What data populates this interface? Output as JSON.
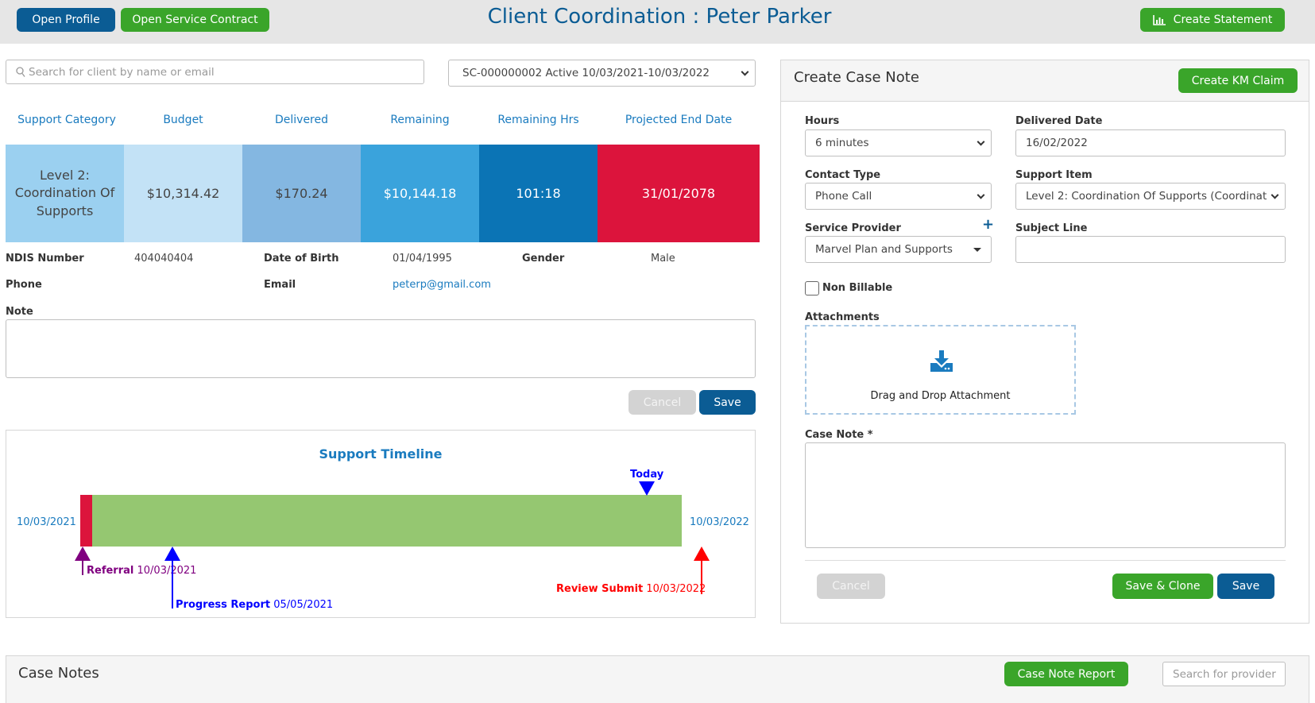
{
  "header": {
    "open_profile": "Open Profile",
    "open_service_contract": "Open Service Contract",
    "title": "Client Coordination : Peter Parker",
    "create_statement": "Create Statement"
  },
  "search": {
    "placeholder": "Search for client by name or email"
  },
  "contract_select": {
    "value": "SC-000000002 Active 10/03/2021-10/03/2022"
  },
  "stats": {
    "headers": [
      "Support Category",
      "Budget",
      "Delivered",
      "Remaining",
      "Remaining Hrs",
      "Projected End Date"
    ],
    "values": [
      "Level 2: Coordination Of Supports",
      "$10,314.42",
      "$170.24",
      "$10,144.18",
      "101:18",
      "31/01/2078"
    ],
    "colors": [
      "#9bd0f0",
      "#c3e2f6",
      "#84b7e1",
      "#3aa3dc",
      "#0b74b5",
      "#dc143c"
    ]
  },
  "client": {
    "ndis_label": "NDIS Number",
    "ndis_value": "404040404",
    "dob_label": "Date of Birth",
    "dob_value": "01/04/1995",
    "gender_label": "Gender",
    "gender_value": "Male",
    "phone_label": "Phone",
    "phone_value": "",
    "email_label": "Email",
    "email_value": "peterp@gmail.com",
    "note_label": "Note",
    "note_value": ""
  },
  "note_actions": {
    "cancel": "Cancel",
    "save": "Save"
  },
  "timeline": {
    "title": "Support Timeline",
    "start_date": "10/03/2021",
    "end_date": "10/03/2022",
    "today_label": "Today",
    "elapsed_fraction": 0.02,
    "today_fraction": 0.942,
    "referral_label": "Referral",
    "referral_date": "10/03/2021",
    "progress_label": "Progress Report",
    "progress_date": "05/05/2021",
    "review_label": "Review Submit",
    "review_date": "10/03/2022",
    "colors": {
      "bar": "#95c771",
      "elapsed": "#dc143c",
      "referral": "#800080",
      "progress": "#0000ff",
      "review": "#ff0000",
      "today": "#0000ff"
    }
  },
  "case_note_form": {
    "title": "Create Case Note",
    "create_km_claim": "Create KM Claim",
    "hours_label": "Hours",
    "hours_value": "6 minutes",
    "delivered_date_label": "Delivered Date",
    "delivered_date_value": "16/02/2022",
    "contact_type_label": "Contact Type",
    "contact_type_value": "Phone Call",
    "support_item_label": "Support Item",
    "support_item_value": "Level 2: Coordination Of Supports (Coordinat",
    "service_provider_label": "Service Provider",
    "service_provider_value": "Marvel Plan and Supports",
    "subject_line_label": "Subject Line",
    "subject_line_value": "",
    "non_billable_label": "Non Billable",
    "attachments_label": "Attachments",
    "drag_drop_text": "Drag and Drop Attachment",
    "case_note_label": "Case Note *",
    "cancel": "Cancel",
    "save_clone": "Save & Clone",
    "save": "Save"
  },
  "case_notes": {
    "title": "Case Notes",
    "report_button": "Case Note Report",
    "search_placeholder": "Search for provider"
  }
}
